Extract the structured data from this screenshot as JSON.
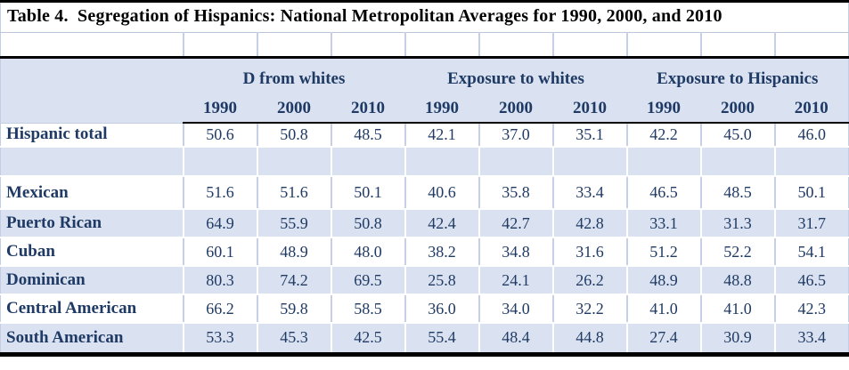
{
  "title": "Table 4.  Segregation of Hispanics: National Metropolitan Averages for 1990, 2000, and 2010",
  "table": {
    "col_groups": [
      "D from whites",
      "Exposure to whites",
      "Exposure to Hispanics"
    ],
    "year_headers": [
      "1990",
      "2000",
      "2010",
      "1990",
      "2000",
      "2010",
      "1990",
      "2000",
      "2010"
    ],
    "rows": [
      {
        "label": "Hispanic total",
        "values": [
          "50.6",
          "50.8",
          "48.5",
          "42.1",
          "37.0",
          "35.1",
          "42.2",
          "45.0",
          "46.0"
        ]
      },
      {
        "label": "",
        "values": [
          "",
          "",
          "",
          "",
          "",
          "",
          "",
          "",
          ""
        ]
      },
      {
        "label": "Mexican",
        "values": [
          "51.6",
          "51.6",
          "50.1",
          "40.6",
          "35.8",
          "33.4",
          "46.5",
          "48.5",
          "50.1"
        ]
      },
      {
        "label": "Puerto Rican",
        "values": [
          "64.9",
          "55.9",
          "50.8",
          "42.4",
          "42.7",
          "42.8",
          "33.1",
          "31.3",
          "31.7"
        ]
      },
      {
        "label": "Cuban",
        "values": [
          "60.1",
          "48.9",
          "48.0",
          "38.2",
          "34.8",
          "31.6",
          "51.2",
          "52.2",
          "54.1"
        ]
      },
      {
        "label": "Dominican",
        "values": [
          "80.3",
          "74.2",
          "69.5",
          "25.8",
          "24.1",
          "26.2",
          "48.9",
          "48.8",
          "46.5"
        ]
      },
      {
        "label": "Central American",
        "values": [
          "66.2",
          "59.8",
          "58.5",
          "36.0",
          "34.0",
          "32.2",
          "41.0",
          "41.0",
          "42.3"
        ]
      },
      {
        "label": "South American",
        "values": [
          "53.3",
          "45.3",
          "42.5",
          "55.4",
          "48.4",
          "44.8",
          "27.4",
          "30.9",
          "33.4"
        ]
      }
    ]
  },
  "colors": {
    "header_bg": "#dae2f1",
    "text_navy": "#1f3a64",
    "title_black": "#000000",
    "divider": "#c5cfe5",
    "rule_black": "#000000"
  }
}
